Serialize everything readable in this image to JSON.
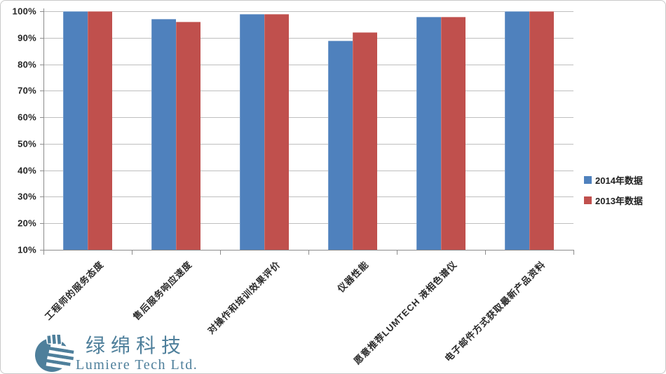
{
  "chart_data": {
    "type": "bar",
    "title": "",
    "xlabel": "",
    "ylabel": "",
    "categories": [
      "工程师的服务态度",
      "售后服务响应速度",
      "对操作和培训效果评价",
      "仪器性能",
      "愿意推荐LUMTECH 液相色谱仪",
      "电子邮件方式获取最新产品资料"
    ],
    "series": [
      {
        "name": "2014年数据",
        "color": "#4F81BD",
        "values": [
          100,
          97,
          99,
          89,
          98,
          100
        ]
      },
      {
        "name": "2013年数据",
        "color": "#C0504D",
        "values": [
          100,
          96,
          99,
          92,
          98,
          100
        ]
      }
    ],
    "ylim": [
      10,
      100
    ],
    "ytick_step": 10,
    "ytick_suffix": "%",
    "grid": true,
    "legend_position": "right"
  },
  "colors": {
    "grid": "#BFBFBF",
    "axis": "#8C8C8C",
    "tick_text": "#262626",
    "chart_border": "#C9C9C9",
    "logo": "#4E7F9B"
  },
  "logo": {
    "name_cn": "绿绵科技",
    "name_en": "Lumiere Tech Ltd."
  }
}
